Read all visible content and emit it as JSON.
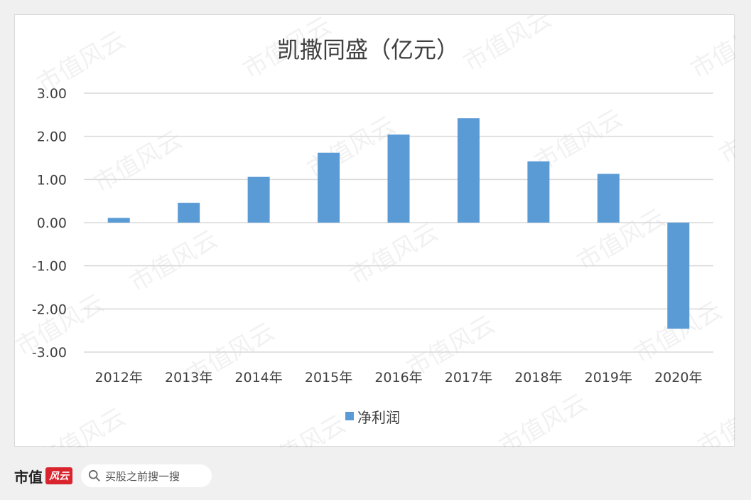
{
  "chart_data": {
    "type": "bar",
    "title": "凯撒同盛（亿元）",
    "categories": [
      "2012年",
      "2013年",
      "2014年",
      "2015年",
      "2016年",
      "2017年",
      "2018年",
      "2019年",
      "2020年"
    ],
    "series": [
      {
        "name": "净利润",
        "values": [
          0.11,
          0.46,
          1.06,
          1.62,
          2.04,
          2.42,
          1.42,
          1.13,
          -2.46
        ],
        "color": "#5b9bd5"
      }
    ],
    "ylim": [
      -3,
      3
    ],
    "yticks": [
      "3.00",
      "2.00",
      "1.00",
      "0.00",
      "-1.00",
      "-2.00",
      "-3.00"
    ],
    "ytick_values": [
      3,
      2,
      1,
      0,
      -1,
      -2,
      -3
    ],
    "grid": true,
    "legend": "bottom",
    "xlabel": "",
    "ylabel": ""
  },
  "watermark": "市值风云",
  "footer": {
    "brand": "市值",
    "badge": "风云",
    "search_placeholder": "买股之前搜一搜"
  },
  "colors": {
    "bar": "#5b9bd5",
    "grid": "#d9d9d9",
    "text": "#404040"
  }
}
